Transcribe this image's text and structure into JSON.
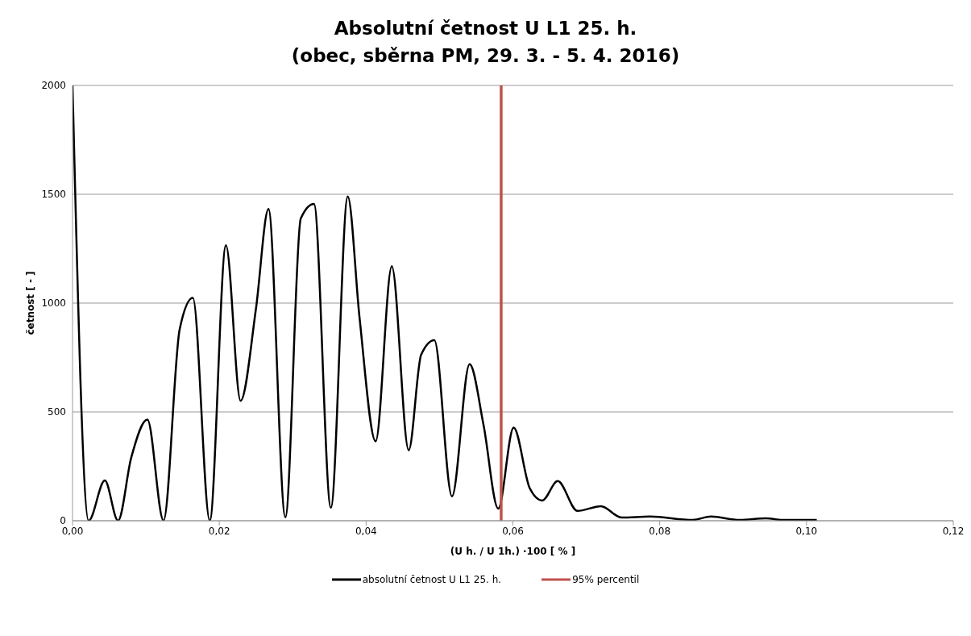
{
  "chart_data": {
    "type": "line",
    "title": "Absolutní četnost U L1 25. h.",
    "subtitle": "(obec, sběrna PM, 29. 3. - 5. 4. 2016)",
    "xlabel": "(U h. / U 1h.) ·100 [ % ]",
    "ylabel": "četnost [ - ]",
    "x": [
      0,
      0.0022,
      0.0044,
      0.0062,
      0.008,
      0.0102,
      0.0124,
      0.0146,
      0.0164,
      0.0187,
      0.0209,
      0.0229,
      0.025,
      0.0267,
      0.029,
      0.0311,
      0.0329,
      0.0352,
      0.0375,
      0.0391,
      0.0413,
      0.0435,
      0.0458,
      0.0475,
      0.0493,
      0.0517,
      0.0541,
      0.056,
      0.058,
      0.0601,
      0.0623,
      0.064,
      0.0661,
      0.0688,
      0.072,
      0.0748,
      0.0787,
      0.0845,
      0.087,
      0.0909,
      0.0945,
      0.0967,
      0.1014
    ],
    "series": [
      {
        "name": "absolutní četnost U L1 25. h.",
        "color": "#000000",
        "values": [
          2000,
          0,
          185,
          0,
          290,
          465,
          0,
          880,
          1024,
          0,
          1266,
          551,
          976,
          1432,
          16,
          1389,
          1456,
          60,
          1490,
          935,
          365,
          1169,
          324,
          763,
          830,
          112,
          719,
          440,
          56,
          428,
          149,
          93,
          182,
          45,
          67,
          15,
          19,
          4,
          19,
          4,
          11,
          4,
          4
        ]
      }
    ],
    "ref_lines": [
      {
        "axis": "x",
        "value": 0.0584,
        "label": "95% percentil",
        "color": "#c0504d"
      }
    ],
    "xlim": [
      0,
      0.12
    ],
    "xticks": [
      {
        "value": 0,
        "label": "0,00"
      },
      {
        "value": 0.02,
        "label": "0,02"
      },
      {
        "value": 0.04,
        "label": "0,04"
      },
      {
        "value": 0.06,
        "label": "0,06"
      },
      {
        "value": 0.08,
        "label": "0,08"
      },
      {
        "value": 0.1,
        "label": "0,10"
      },
      {
        "value": 0.12,
        "label": "0,12"
      }
    ],
    "ylim": [
      0,
      2000
    ],
    "yticks": [
      0,
      500,
      1000,
      1500,
      2000
    ],
    "grid": "y",
    "legend": "bottom",
    "marker": "none",
    "line_style": "solid"
  }
}
